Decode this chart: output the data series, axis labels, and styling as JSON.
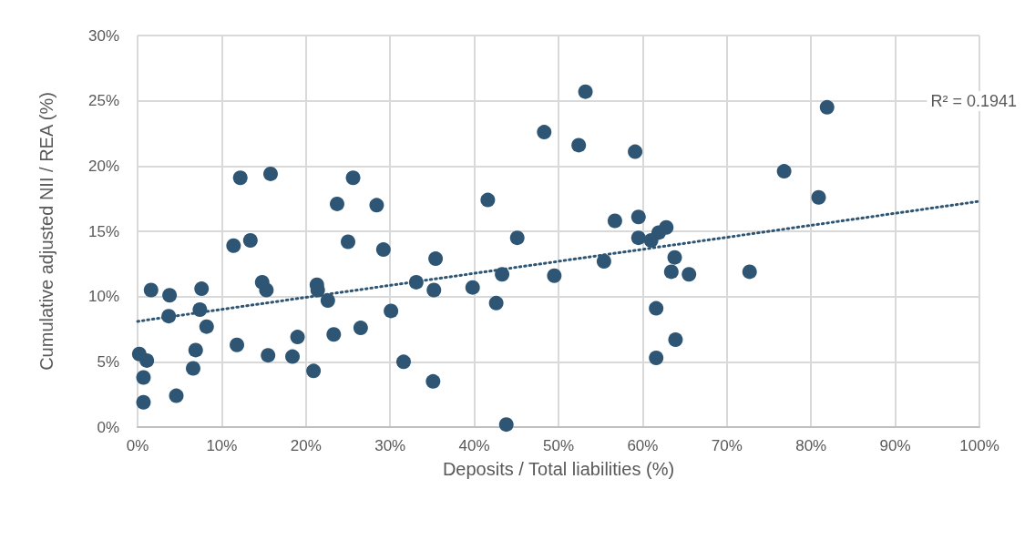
{
  "chart_data": {
    "type": "scatter",
    "xlabel": "Deposits / Total liabilities (%)",
    "ylabel": "Cumulative adjusted NII / REA (%)",
    "annotations": [
      "R² = 0.1941"
    ],
    "xlim": [
      0,
      100
    ],
    "xticks": [
      {
        "value": 0,
        "label": "0%"
      },
      {
        "value": 10,
        "label": "10%"
      },
      {
        "value": 20,
        "label": "20%"
      },
      {
        "value": 30,
        "label": "30%"
      },
      {
        "value": 40,
        "label": "40%"
      },
      {
        "value": 50,
        "label": "50%"
      },
      {
        "value": 60,
        "label": "60%"
      },
      {
        "value": 70,
        "label": "70%"
      },
      {
        "value": 80,
        "label": "80%"
      },
      {
        "value": 90,
        "label": "90%"
      },
      {
        "value": 100,
        "label": "100%"
      }
    ],
    "ylim": [
      0,
      30
    ],
    "yticks": [
      {
        "value": 0,
        "label": "0%"
      },
      {
        "value": 5,
        "label": "5%"
      },
      {
        "value": 10,
        "label": "10%"
      },
      {
        "value": 15,
        "label": "15%"
      },
      {
        "value": 20,
        "label": "20%"
      },
      {
        "value": 25,
        "label": "25%"
      },
      {
        "value": 30,
        "label": "30%"
      }
    ],
    "grid": true,
    "marker": "circle",
    "series": [
      {
        "color": "#2e5674",
        "x": [
          0.2,
          1.1,
          0.7,
          0.7,
          1.6,
          3.8,
          3.7,
          4.6,
          6.6,
          6.9,
          7.4,
          7.6,
          8.2,
          11.4,
          11.8,
          12.2,
          13.4,
          14.8,
          15.3,
          15.5,
          15.8,
          18.4,
          19.0,
          20.9,
          21.3,
          21.4,
          22.6,
          23.3,
          23.7,
          25.0,
          25.6,
          26.5,
          28.4,
          29.2,
          30.1,
          31.6,
          33.1,
          35.2,
          35.4,
          35.1,
          39.8,
          41.6,
          42.6,
          43.3,
          43.8,
          45.1,
          48.3,
          49.5,
          52.4,
          53.2,
          55.4,
          56.7,
          59.1,
          59.5,
          59.5,
          61.0,
          61.9,
          62.8,
          63.8,
          63.4,
          65.5,
          61.6,
          63.9,
          61.6,
          72.7,
          76.8,
          80.9,
          81.9
        ],
        "values": [
          5.6,
          5.1,
          3.8,
          1.9,
          10.5,
          10.1,
          8.5,
          2.4,
          4.5,
          5.9,
          9.0,
          10.6,
          7.7,
          13.9,
          6.3,
          19.1,
          14.3,
          11.1,
          10.5,
          5.5,
          19.4,
          5.4,
          6.9,
          4.3,
          10.9,
          10.5,
          9.7,
          7.1,
          17.1,
          14.2,
          19.1,
          7.6,
          17.0,
          13.6,
          8.9,
          5.0,
          11.1,
          10.5,
          12.9,
          3.5,
          10.7,
          17.4,
          9.5,
          11.7,
          0.2,
          14.5,
          22.6,
          11.6,
          21.6,
          25.7,
          12.7,
          15.8,
          21.1,
          16.1,
          14.5,
          14.3,
          14.9,
          15.3,
          13.0,
          11.9,
          11.7,
          9.1,
          6.7,
          5.3,
          11.9,
          19.6,
          17.6,
          24.5
        ]
      },
      {
        "type": "line",
        "color": "#2e5674",
        "line_style": "dotted",
        "marker": "none",
        "x": [
          0,
          100
        ],
        "values": [
          8.1,
          17.3
        ]
      }
    ]
  }
}
